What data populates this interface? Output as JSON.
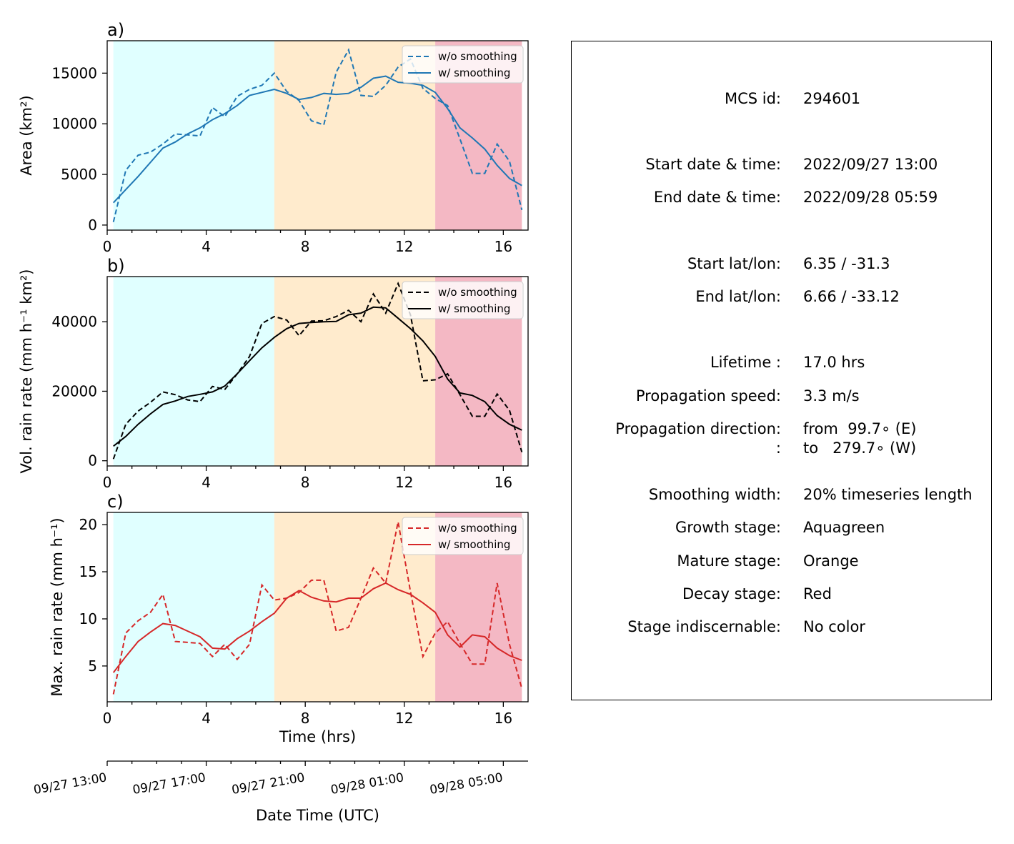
{
  "colors": {
    "growth": "#e0ffff",
    "mature": "#ffebcd",
    "decay": "#f4b8c4",
    "series_a": "#1f77b4",
    "series_b": "#000000",
    "series_c": "#d62728"
  },
  "stages_hours": {
    "growth": [
      0.25,
      6.75
    ],
    "mature": [
      6.75,
      13.25
    ],
    "decay": [
      13.25,
      16.75
    ]
  },
  "chart_data": [
    {
      "type": "line",
      "panel_label": "a)",
      "ylabel": "Area  (km²)",
      "xlim": [
        0,
        17
      ],
      "ylim": [
        -500,
        18200
      ],
      "x_ticks": [
        "0",
        "4",
        "8",
        "12",
        "16"
      ],
      "y_ticks": [
        "0",
        "5000",
        "10000",
        "15000"
      ],
      "x": [
        0.25,
        0.75,
        1.25,
        1.75,
        2.25,
        2.75,
        3.25,
        3.75,
        4.25,
        4.75,
        5.25,
        5.75,
        6.25,
        6.75,
        7.25,
        7.75,
        8.25,
        8.75,
        9.25,
        9.75,
        10.25,
        10.75,
        11.25,
        11.75,
        12.25,
        12.75,
        13.25,
        13.75,
        14.25,
        14.75,
        15.25,
        15.75,
        16.25,
        16.75
      ],
      "series": [
        {
          "name": "w/o smoothing",
          "style": "dashed",
          "values": [
            300,
            5400,
            6900,
            7200,
            8000,
            9000,
            8900,
            8800,
            11600,
            10700,
            12700,
            13400,
            13800,
            15000,
            13200,
            12300,
            10300,
            9900,
            15100,
            17300,
            12800,
            12700,
            13800,
            15600,
            16400,
            13500,
            12500,
            11800,
            8500,
            5100,
            5100,
            8000,
            6300,
            1500
          ]
        },
        {
          "name": "w/ smoothing",
          "style": "solid",
          "values": [
            2200,
            3500,
            4800,
            6200,
            7600,
            8200,
            9000,
            9600,
            10400,
            11000,
            11800,
            12800,
            13100,
            13400,
            13000,
            12400,
            12600,
            13000,
            12900,
            13000,
            13600,
            14500,
            14700,
            14100,
            14000,
            13800,
            13100,
            11500,
            9600,
            8600,
            7500,
            5900,
            4600,
            3900
          ]
        }
      ]
    },
    {
      "type": "line",
      "panel_label": "b)",
      "ylabel": "Vol. rain rate (mm h⁻¹ km²)",
      "xlim": [
        0,
        17
      ],
      "ylim": [
        -1500,
        53000
      ],
      "x_ticks": [
        "0",
        "4",
        "8",
        "12",
        "16"
      ],
      "y_ticks": [
        "0",
        "20000",
        "40000"
      ],
      "x": [
        0.25,
        0.75,
        1.25,
        1.75,
        2.25,
        2.75,
        3.25,
        3.75,
        4.25,
        4.75,
        5.25,
        5.75,
        6.25,
        6.75,
        7.25,
        7.75,
        8.25,
        8.75,
        9.25,
        9.75,
        10.25,
        10.75,
        11.25,
        11.75,
        12.25,
        12.75,
        13.25,
        13.75,
        14.25,
        14.75,
        15.25,
        15.75,
        16.25,
        16.75
      ],
      "series": [
        {
          "name": "w/o smoothing",
          "style": "dashed",
          "values": [
            500,
            10500,
            14300,
            16800,
            19800,
            19000,
            17500,
            17000,
            21400,
            20500,
            25000,
            30000,
            39500,
            41500,
            40500,
            36000,
            40200,
            40300,
            41500,
            43300,
            40000,
            48000,
            42500,
            51000,
            42000,
            23000,
            23300,
            25000,
            19000,
            12800,
            12800,
            19200,
            14500,
            2500
          ]
        },
        {
          "name": "w/ smoothing",
          "style": "solid",
          "values": [
            4200,
            7000,
            10500,
            13500,
            16200,
            17200,
            18500,
            19100,
            19800,
            21500,
            25000,
            28800,
            32500,
            35500,
            38000,
            39500,
            39800,
            40000,
            40100,
            42000,
            42500,
            44200,
            44000,
            41000,
            38000,
            34500,
            30000,
            23500,
            19500,
            18800,
            17000,
            13000,
            10500,
            8800
          ]
        }
      ]
    },
    {
      "type": "line",
      "panel_label": "c)",
      "ylabel": "Max. rain rate  (mm h⁻¹)",
      "xlim": [
        0,
        17
      ],
      "ylim": [
        1.2,
        21.3
      ],
      "x_ticks": [
        "0",
        "4",
        "8",
        "12",
        "16"
      ],
      "y_ticks": [
        "5",
        "10",
        "15",
        "20"
      ],
      "xlabel": "Time (hrs)",
      "x": [
        0.25,
        0.75,
        1.25,
        1.75,
        2.25,
        2.75,
        3.25,
        3.75,
        4.25,
        4.75,
        5.25,
        5.75,
        6.25,
        6.75,
        7.25,
        7.75,
        8.25,
        8.75,
        9.25,
        9.75,
        10.25,
        10.75,
        11.25,
        11.75,
        12.25,
        12.75,
        13.25,
        13.75,
        14.25,
        14.75,
        15.25,
        15.75,
        16.25,
        16.75
      ],
      "series": [
        {
          "name": "w/o smoothing",
          "style": "dashed",
          "values": [
            2.0,
            8.5,
            9.8,
            10.7,
            12.6,
            7.6,
            7.5,
            7.4,
            6.0,
            7.3,
            5.7,
            7.3,
            13.6,
            12.0,
            12.2,
            12.8,
            14.1,
            14.1,
            8.7,
            9.1,
            12.2,
            15.4,
            13.8,
            20.3,
            12.9,
            6.0,
            8.5,
            9.7,
            7.4,
            5.2,
            5.2,
            13.8,
            7.3,
            2.6
          ]
        },
        {
          "name": "w/ smoothing",
          "style": "solid",
          "values": [
            4.3,
            6.0,
            7.6,
            8.6,
            9.5,
            9.3,
            8.7,
            8.1,
            6.9,
            6.8,
            7.9,
            8.7,
            9.7,
            10.6,
            12.2,
            13.0,
            12.3,
            11.9,
            11.8,
            12.2,
            12.2,
            13.2,
            13.8,
            13.1,
            12.6,
            11.7,
            10.7,
            8.3,
            7.0,
            8.3,
            8.1,
            6.9,
            6.1,
            5.6
          ]
        }
      ]
    }
  ],
  "datetime_axis": {
    "label": "Date Time (UTC)",
    "tick_labels": [
      "09/27 13:00",
      "09/27 17:00",
      "09/27 21:00",
      "09/28 01:00",
      "09/28 05:00"
    ],
    "tick_hours": [
      0,
      4,
      8,
      12,
      16
    ]
  },
  "info": [
    {
      "key": "MCS id:",
      "value": "294601"
    },
    {
      "key": "Start date & time:",
      "value": "2022/09/27 13:00"
    },
    {
      "key": "End date & time:",
      "value": "2022/09/28 05:59"
    },
    {
      "key": "Start lat/lon:",
      "value": "6.35 / -31.3"
    },
    {
      "key": "End lat/lon:",
      "value": "6.66 / -33.12"
    },
    {
      "key": "Lifetime :",
      "value": "17.0 hrs"
    },
    {
      "key": "Propagation speed:",
      "value": "3.3 m/s"
    },
    {
      "key": "Propagation direction:",
      "value": "from  99.7∘ (E)"
    },
    {
      "key": ":",
      "value": "to   279.7∘ (W)"
    },
    {
      "key": "Smoothing width:",
      "value": "20% timeseries length"
    },
    {
      "key": "Growth stage:",
      "value": "Aquagreen"
    },
    {
      "key": "Mature stage:",
      "value": "Orange"
    },
    {
      "key": "Decay stage:",
      "value": "Red"
    },
    {
      "key": "Stage indiscernable:",
      "value": "No color"
    }
  ]
}
